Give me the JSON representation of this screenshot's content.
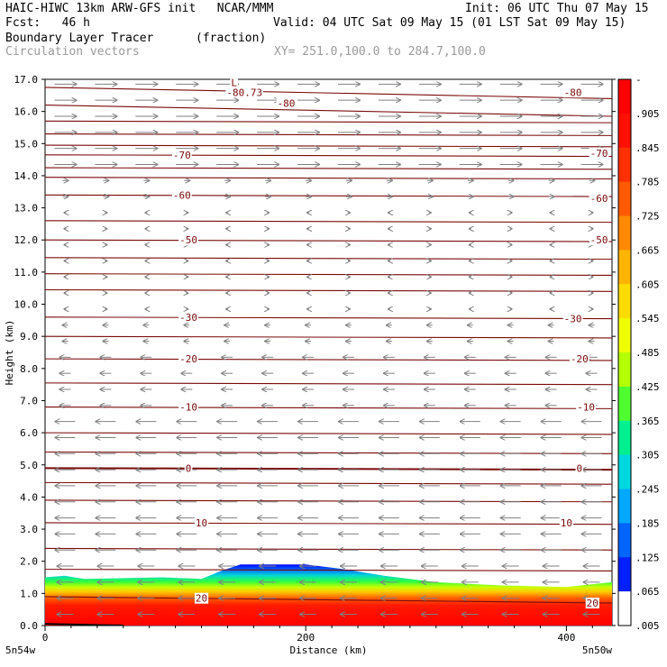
{
  "header": {
    "line1_left": "HAIC-HIWC 13km ARW-GFS init   NCAR/MMM",
    "line1_right": "Init: 06 UTC Thu 07 May 15",
    "line2_left": "Fcst:   46 h",
    "line2_right": "Valid: 04 UTC Sat 09 May 15 (01 LST Sat 09 May 15)",
    "line3_left": "Boundary Layer Tracer",
    "line3_unit": "(fraction)",
    "line4_left": "Circulation vectors",
    "line4_right": "XY= 251.0,100.0 to 284.7,100.0"
  },
  "chart_data": {
    "type": "heatmap",
    "title": "Boundary Layer Tracer",
    "units": "(fraction)",
    "xlabel": "Distance (km)",
    "ylabel": "Height (km)",
    "xlim": [
      0,
      435
    ],
    "ylim": [
      0,
      17
    ],
    "x_ticks": [
      0,
      200,
      400
    ],
    "x_tick_labels": [
      "0",
      "200",
      "400"
    ],
    "y_ticks": [
      0,
      1,
      2,
      3,
      4,
      5,
      6,
      7,
      8,
      9,
      10,
      11,
      12,
      13,
      14,
      15,
      16,
      17
    ],
    "y_tick_labels": [
      "0.0",
      "1.0",
      "2.0",
      "3.0",
      "4.0",
      "5.0",
      "6.0",
      "7.0",
      "8.0",
      "9.0",
      "10.0",
      "11.0",
      "12.0",
      "13.0",
      "14.0",
      "15.0",
      "16.0",
      "17.0"
    ],
    "x_endpoint_labels": [
      "5n54w",
      "5n50w"
    ],
    "colorbar": {
      "labels": [
        "-",
        ".905",
        ".845",
        ".785",
        ".725",
        ".665",
        ".605",
        ".545",
        ".485",
        ".425",
        ".365",
        ".305",
        ".245",
        ".185",
        ".125",
        ".065",
        ".005"
      ],
      "colors": [
        "#ff0000",
        "#ff2a00",
        "#ff5500",
        "#ff8000",
        "#ffaa00",
        "#ffd200",
        "#ffff00",
        "#c8ff00",
        "#80ff00",
        "#00ff40",
        "#00e6a0",
        "#00c8ff",
        "#0096ff",
        "#0050ff",
        "#0000ff",
        "#ffffff"
      ]
    },
    "tracer_top_km": [
      [
        0,
        1.5
      ],
      [
        15,
        1.55
      ],
      [
        30,
        1.45
      ],
      [
        90,
        1.5
      ],
      [
        120,
        1.45
      ],
      [
        135,
        1.7
      ],
      [
        150,
        1.9
      ],
      [
        200,
        1.9
      ],
      [
        230,
        1.75
      ],
      [
        260,
        1.55
      ],
      [
        300,
        1.35
      ],
      [
        350,
        1.25
      ],
      [
        400,
        1.2
      ],
      [
        435,
        1.35
      ]
    ],
    "temperature_contours": [
      {
        "label": "-80",
        "height_km": 16.6
      },
      {
        "label": "-80.73",
        "height_km": 16.6
      },
      {
        "label": "-70",
        "height_km": 14.65
      },
      {
        "label": "-60",
        "height_km": 13.4
      },
      {
        "label": "-50",
        "height_km": 12.0
      },
      {
        "label": "-30",
        "height_km": 9.6
      },
      {
        "label": "-20",
        "height_km": 8.3
      },
      {
        "label": "-10",
        "height_km": 6.8
      },
      {
        "label": "0",
        "height_km": 4.9
      },
      {
        "label": "10",
        "height_km": 3.2
      },
      {
        "label": "20",
        "height_km": 0.9
      }
    ],
    "contour_label_positions": [
      {
        "label": "L",
        "x": 145,
        "y": 16.9
      },
      {
        "label": "-80.73",
        "x": 153,
        "y": 16.6
      },
      {
        "label": "-80",
        "x": 185,
        "y": 16.25
      },
      {
        "label": "-80",
        "x": 405,
        "y": 16.6
      },
      {
        "label": "-70",
        "x": 105,
        "y": 14.65
      },
      {
        "label": "-70",
        "x": 425,
        "y": 14.7
      },
      {
        "label": "-60",
        "x": 105,
        "y": 13.4
      },
      {
        "label": "-60",
        "x": 425,
        "y": 13.3
      },
      {
        "label": "-50",
        "x": 110,
        "y": 12.0
      },
      {
        "label": "-50",
        "x": 425,
        "y": 12.0
      },
      {
        "label": "-30",
        "x": 110,
        "y": 9.6
      },
      {
        "label": "-30",
        "x": 405,
        "y": 9.55
      },
      {
        "label": "-20",
        "x": 110,
        "y": 8.3
      },
      {
        "label": "-20",
        "x": 410,
        "y": 8.3
      },
      {
        "label": "-10",
        "x": 110,
        "y": 6.8
      },
      {
        "label": "-10",
        "x": 415,
        "y": 6.8
      },
      {
        "label": "0",
        "x": 110,
        "y": 4.9
      },
      {
        "label": "0",
        "x": 410,
        "y": 4.9
      },
      {
        "label": "10",
        "x": 120,
        "y": 3.2
      },
      {
        "label": "10",
        "x": 400,
        "y": 3.2
      },
      {
        "label": "20",
        "x": 120,
        "y": 0.85
      },
      {
        "label": "20",
        "x": 420,
        "y": 0.7
      }
    ],
    "wind_vectors": "upper levels westerly (rightward) above ~14 km, weak near-calm 9-13 km, easterly (leftward) below ~9 km"
  }
}
